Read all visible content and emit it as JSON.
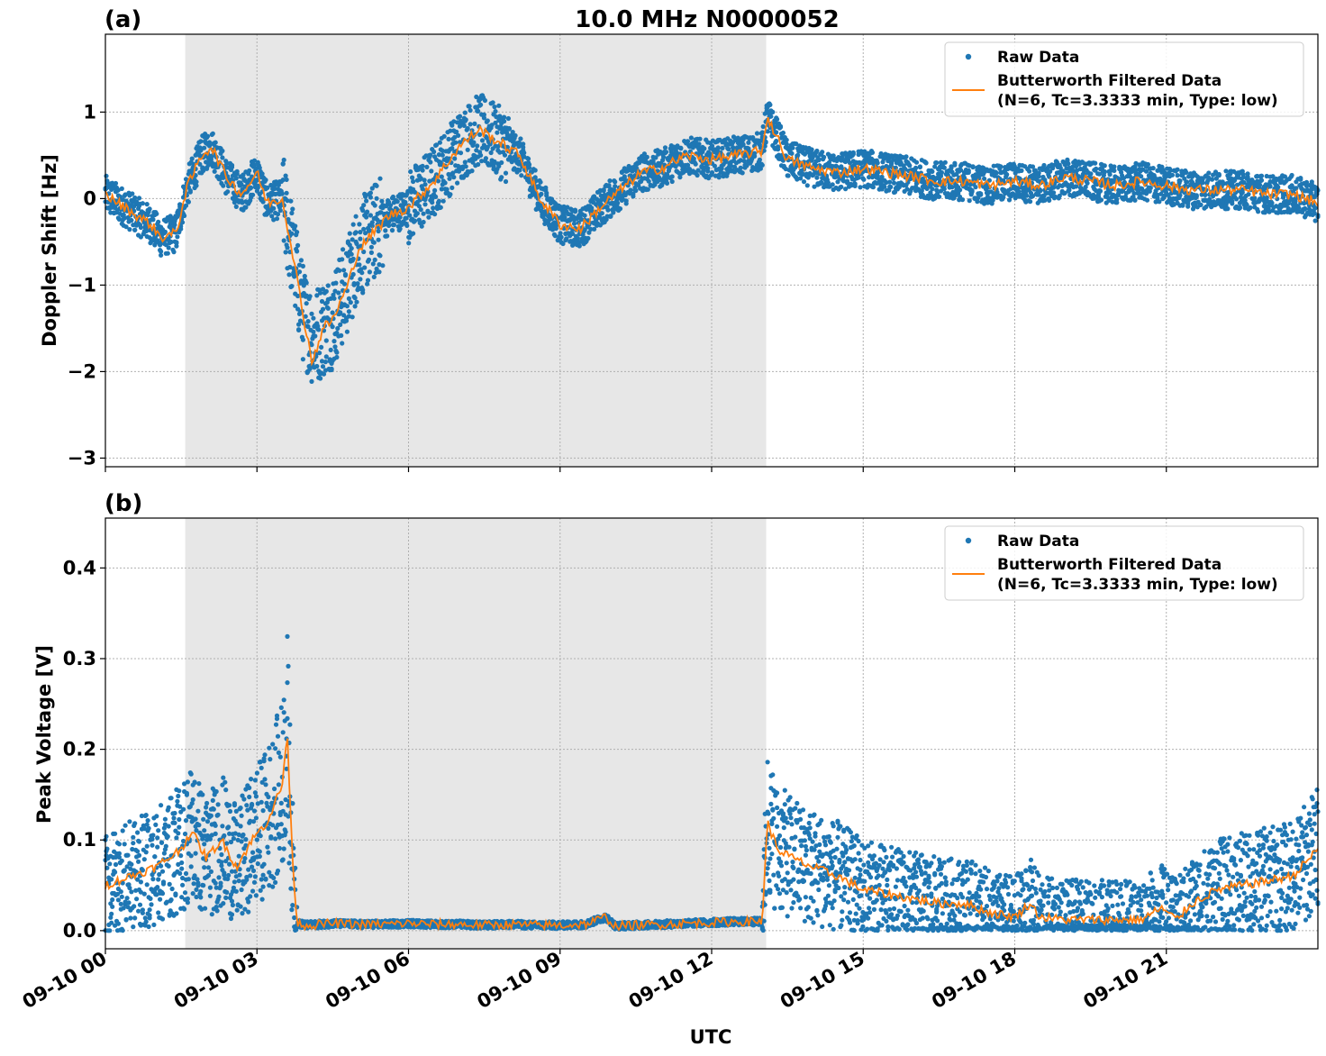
{
  "figure": {
    "title": "10.0 MHz N0000052",
    "xlabel": "UTC",
    "x_tick_labels": [
      "09-10 00",
      "09-10 03",
      "09-10 06",
      "09-10 09",
      "09-10 12",
      "09-10 15",
      "09-10 18",
      "09-10 21"
    ],
    "x_range_hours": [
      0,
      24
    ],
    "shaded_interval_hours": [
      1.58,
      13.08
    ],
    "colors": {
      "raw": "#1f77b4",
      "filtered": "#ff7f0e",
      "shade": "#e7e7e7",
      "grid": "#b0b0b0"
    }
  },
  "chart_data": [
    {
      "type": "scatter",
      "panel_label": "(a)",
      "ylabel": "Doppler Shift [Hz]",
      "ylim": [
        -3.1,
        1.9
      ],
      "yticks": [
        -3,
        -2,
        -1,
        0,
        1
      ],
      "y_tick_labels": [
        "−3",
        "−2",
        "−1",
        "0",
        "1"
      ],
      "grid": true,
      "legend_position": "top-right",
      "legend": [
        "Raw Data",
        "Butterworth Filtered Data",
        "(N=6, Tc=3.3333 min, Type: low)"
      ],
      "series": [
        {
          "name": "Raw Data",
          "style": "points",
          "note": "scatter around filtered curve",
          "x_hours": [
            0,
            0.5,
            0.9,
            1.1,
            1.4,
            1.6,
            1.9,
            2.1,
            2.4,
            2.7,
            3.0,
            3.2,
            3.5,
            3.7,
            3.9,
            4.1,
            4.3,
            4.5,
            4.8,
            5.0,
            5.3,
            5.6,
            6.0,
            6.5,
            7.0,
            7.4,
            7.8,
            8.2,
            8.6,
            9.0,
            9.4,
            9.8,
            10.2,
            10.6,
            11.0,
            11.5,
            12.0,
            12.5,
            13.0,
            13.1,
            13.5,
            14.0,
            14.5,
            15.0,
            15.5,
            16.0,
            16.5,
            17.0,
            17.5,
            18.0,
            18.5,
            19.0,
            19.5,
            20.0,
            20.5,
            21.0,
            21.5,
            22.0,
            22.5,
            23.0,
            23.5,
            24.0
          ],
          "y": [
            0.05,
            -0.15,
            -0.3,
            -0.45,
            -0.4,
            0.1,
            0.5,
            0.6,
            0.25,
            0.05,
            0.3,
            -0.05,
            0.0,
            -0.6,
            -1.3,
            -1.6,
            -1.5,
            -1.4,
            -1.0,
            -0.6,
            -0.4,
            -0.2,
            -0.1,
            0.2,
            0.6,
            0.8,
            0.65,
            0.5,
            0.0,
            -0.3,
            -0.35,
            -0.1,
            0.1,
            0.3,
            0.35,
            0.5,
            0.45,
            0.5,
            0.55,
            0.95,
            0.45,
            0.35,
            0.3,
            0.35,
            0.3,
            0.25,
            0.2,
            0.2,
            0.15,
            0.2,
            0.15,
            0.25,
            0.2,
            0.15,
            0.2,
            0.15,
            0.1,
            0.1,
            0.1,
            0.05,
            0.05,
            -0.05
          ]
        },
        {
          "name": "Butterworth Filtered Data (N=6, Tc=3.3333 min, Type: low)",
          "style": "line",
          "x_hours": [
            0,
            0.5,
            0.9,
            1.1,
            1.4,
            1.6,
            1.9,
            2.1,
            2.4,
            2.7,
            3.0,
            3.2,
            3.5,
            3.7,
            3.9,
            4.1,
            4.3,
            4.5,
            4.8,
            5.0,
            5.3,
            5.6,
            6.0,
            6.5,
            7.0,
            7.4,
            7.8,
            8.2,
            8.6,
            9.0,
            9.4,
            9.8,
            10.2,
            10.6,
            11.0,
            11.5,
            12.0,
            12.5,
            13.0,
            13.1,
            13.5,
            14.0,
            14.5,
            15.0,
            15.5,
            16.0,
            16.5,
            17.0,
            17.5,
            18.0,
            18.5,
            19.0,
            19.5,
            20.0,
            20.5,
            21.0,
            21.5,
            22.0,
            22.5,
            23.0,
            23.5,
            24.0
          ],
          "y": [
            0.05,
            -0.15,
            -0.3,
            -0.45,
            -0.4,
            0.1,
            0.5,
            0.6,
            0.25,
            0.05,
            0.3,
            -0.05,
            0.0,
            -0.6,
            -1.3,
            -1.9,
            -1.5,
            -1.4,
            -1.0,
            -0.6,
            -0.4,
            -0.2,
            -0.1,
            0.2,
            0.6,
            0.8,
            0.65,
            0.5,
            0.0,
            -0.3,
            -0.35,
            -0.1,
            0.1,
            0.3,
            0.35,
            0.5,
            0.45,
            0.5,
            0.55,
            0.95,
            0.45,
            0.35,
            0.3,
            0.35,
            0.3,
            0.25,
            0.2,
            0.2,
            0.15,
            0.2,
            0.15,
            0.25,
            0.2,
            0.15,
            0.2,
            0.15,
            0.1,
            0.1,
            0.1,
            0.05,
            0.05,
            -0.05
          ]
        }
      ]
    },
    {
      "type": "scatter",
      "panel_label": "(b)",
      "ylabel": "Peak Voltage [V]",
      "ylim": [
        -0.02,
        0.455
      ],
      "yticks": [
        0.0,
        0.1,
        0.2,
        0.3,
        0.4
      ],
      "y_tick_labels": [
        "0.0",
        "0.1",
        "0.2",
        "0.3",
        "0.4"
      ],
      "grid": true,
      "legend_position": "top-right",
      "legend": [
        "Raw Data",
        "Butterworth Filtered Data",
        "(N=6, Tc=3.3333 min, Type: low)"
      ],
      "series": [
        {
          "name": "Raw Data",
          "style": "points",
          "x_hours": [
            0,
            0.5,
            1.0,
            1.5,
            1.7,
            2.0,
            2.3,
            2.6,
            2.9,
            3.2,
            3.5,
            3.6,
            3.7,
            3.8,
            4.0,
            4.5,
            5.0,
            5.5,
            6.0,
            6.5,
            7.0,
            7.5,
            8.0,
            8.5,
            9.0,
            9.5,
            9.9,
            10.1,
            10.5,
            11.0,
            11.5,
            12.0,
            12.5,
            13.0,
            13.1,
            13.3,
            13.6,
            14.0,
            14.5,
            15.0,
            15.5,
            16.0,
            16.5,
            17.0,
            17.5,
            18.0,
            18.3,
            18.5,
            19.0,
            19.5,
            20.0,
            20.5,
            20.9,
            21.2,
            21.5,
            22.0,
            22.5,
            23.0,
            23.5,
            24.0
          ],
          "y": [
            0.05,
            0.06,
            0.07,
            0.09,
            0.11,
            0.08,
            0.1,
            0.07,
            0.1,
            0.12,
            0.16,
            0.22,
            0.08,
            0.008,
            0.006,
            0.008,
            0.007,
            0.007,
            0.008,
            0.007,
            0.007,
            0.006,
            0.007,
            0.006,
            0.006,
            0.007,
            0.015,
            0.005,
            0.006,
            0.007,
            0.008,
            0.009,
            0.01,
            0.01,
            0.12,
            0.09,
            0.08,
            0.07,
            0.06,
            0.045,
            0.04,
            0.035,
            0.03,
            0.03,
            0.02,
            0.015,
            0.03,
            0.015,
            0.012,
            0.012,
            0.012,
            0.012,
            0.025,
            0.012,
            0.03,
            0.045,
            0.05,
            0.055,
            0.06,
            0.09
          ]
        },
        {
          "name": "Butterworth Filtered Data (N=6, Tc=3.3333 min, Type: low)",
          "style": "line",
          "x_hours": [
            0,
            0.5,
            1.0,
            1.5,
            1.7,
            2.0,
            2.3,
            2.6,
            2.9,
            3.2,
            3.5,
            3.6,
            3.7,
            3.8,
            4.0,
            4.5,
            5.0,
            5.5,
            6.0,
            6.5,
            7.0,
            7.5,
            8.0,
            8.5,
            9.0,
            9.5,
            9.9,
            10.1,
            10.5,
            11.0,
            11.5,
            12.0,
            12.5,
            13.0,
            13.1,
            13.3,
            13.6,
            14.0,
            14.5,
            15.0,
            15.5,
            16.0,
            16.5,
            17.0,
            17.5,
            18.0,
            18.3,
            18.5,
            19.0,
            19.5,
            20.0,
            20.5,
            20.9,
            21.2,
            21.5,
            22.0,
            22.5,
            23.0,
            23.5,
            24.0
          ],
          "y": [
            0.05,
            0.06,
            0.07,
            0.09,
            0.11,
            0.08,
            0.1,
            0.07,
            0.1,
            0.12,
            0.16,
            0.22,
            0.08,
            0.008,
            0.006,
            0.008,
            0.007,
            0.007,
            0.008,
            0.007,
            0.007,
            0.006,
            0.007,
            0.006,
            0.006,
            0.007,
            0.015,
            0.005,
            0.006,
            0.007,
            0.008,
            0.009,
            0.01,
            0.01,
            0.12,
            0.09,
            0.08,
            0.07,
            0.06,
            0.045,
            0.04,
            0.035,
            0.03,
            0.03,
            0.02,
            0.015,
            0.03,
            0.015,
            0.012,
            0.012,
            0.012,
            0.012,
            0.025,
            0.012,
            0.03,
            0.045,
            0.05,
            0.055,
            0.06,
            0.09
          ]
        }
      ]
    }
  ]
}
